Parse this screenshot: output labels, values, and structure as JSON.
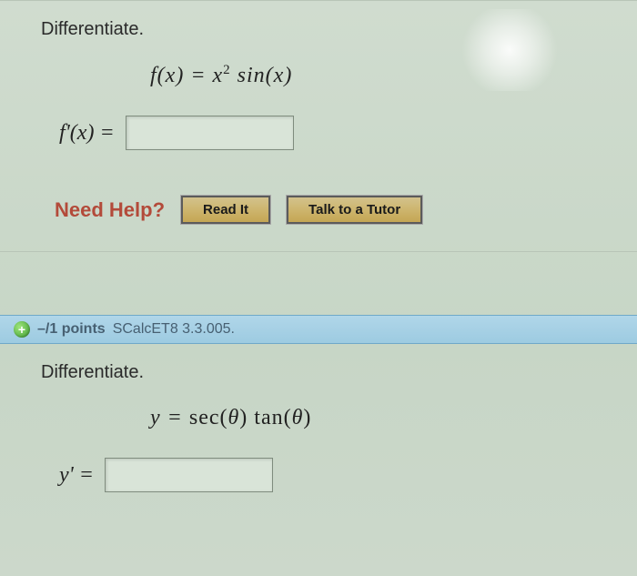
{
  "q1": {
    "instruction": "Differentiate.",
    "equation_f": "f",
    "equation_open": "(",
    "equation_var": "x",
    "equation_close": ") = ",
    "equation_rhs_a": "x",
    "equation_sup": "2",
    "equation_rhs_b": " sin(",
    "equation_rhs_c": "x",
    "equation_rhs_d": ")",
    "lhs": "f'(x) =",
    "input_value": ""
  },
  "help": {
    "label": "Need Help?",
    "read_btn": "Read It",
    "tutor_btn": "Talk to a Tutor"
  },
  "header": {
    "points": "–/1 points",
    "ref": "SCalcET8 3.3.005."
  },
  "q2": {
    "instruction": "Differentiate.",
    "equation_lhs": "y = ",
    "equation_rhs_a": "sec(",
    "equation_theta1": "θ",
    "equation_rhs_b": ") tan(",
    "equation_theta2": "θ",
    "equation_rhs_c": ")",
    "lhs": "y' =",
    "input_value": ""
  },
  "colors": {
    "background": "#cddacc",
    "header_bg": "#a6d0e5",
    "need_help": "#b34a3a",
    "btn_bg": "#cdb56e"
  }
}
